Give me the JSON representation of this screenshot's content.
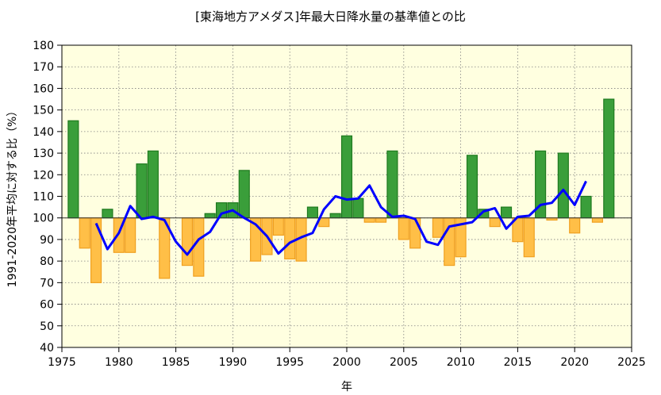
{
  "chart_data": {
    "type": "bar",
    "title": "[東海地方アメダス]年最大日降水量の基準値との比",
    "xlabel": "年",
    "ylabel": "1991-2020年平均に対する比（%）",
    "xlim": [
      1975,
      2025
    ],
    "ylim": [
      40,
      180
    ],
    "baseline": 100,
    "grid": true,
    "x_ticks": [
      1975,
      1980,
      1985,
      1990,
      1995,
      2000,
      2005,
      2010,
      2015,
      2020,
      2025
    ],
    "y_ticks": [
      40,
      50,
      60,
      70,
      80,
      90,
      100,
      110,
      120,
      130,
      140,
      150,
      160,
      170,
      180
    ],
    "colors": {
      "above": "#3a9e3a",
      "above_edge": "#1f7a1f",
      "below": "#ffbf47",
      "below_edge": "#f0a020",
      "line": "#0000ff",
      "plot_bg": "#ffffe0"
    },
    "bars": {
      "years": [
        1976,
        1977,
        1978,
        1979,
        1980,
        1981,
        1982,
        1983,
        1984,
        1985,
        1986,
        1987,
        1988,
        1989,
        1990,
        1991,
        1992,
        1993,
        1994,
        1995,
        1996,
        1997,
        1998,
        1999,
        2000,
        2001,
        2002,
        2003,
        2004,
        2005,
        2006,
        2007,
        2008,
        2009,
        2010,
        2011,
        2012,
        2013,
        2014,
        2015,
        2016,
        2017,
        2018,
        2019,
        2020,
        2021,
        2022,
        2023
      ],
      "values": [
        145,
        86,
        70,
        104,
        84,
        84,
        125,
        131,
        72,
        100,
        78,
        73,
        102,
        107,
        107,
        122,
        80,
        83,
        92,
        81,
        80,
        105,
        96,
        102,
        138,
        109,
        98,
        98,
        131,
        90,
        86,
        100,
        91,
        78,
        82,
        129,
        104,
        96,
        105,
        89,
        82,
        131,
        99,
        130,
        93,
        110,
        98,
        155
      ]
    },
    "series": [
      {
        "type": "line",
        "years": [
          1978,
          1979,
          1980,
          1981,
          1982,
          1983,
          1984,
          1985,
          1986,
          1987,
          1988,
          1989,
          1990,
          1991,
          1992,
          1993,
          1994,
          1995,
          1996,
          1997,
          1998,
          1999,
          2000,
          2001,
          2002,
          2003,
          2004,
          2005,
          2006,
          2007,
          2008,
          2009,
          2010,
          2011,
          2012,
          2013,
          2014,
          2015,
          2016,
          2017,
          2018,
          2019,
          2020,
          2021
        ],
        "values": [
          97.5,
          85.5,
          93,
          105.5,
          99.5,
          100.5,
          99,
          89,
          83,
          90,
          93.5,
          102,
          103.5,
          100,
          97,
          91.5,
          83.5,
          88.5,
          91,
          93,
          104,
          110,
          108.5,
          109,
          115,
          105,
          100.5,
          101,
          99.5,
          89,
          87.5,
          96,
          97,
          98,
          103,
          104.5,
          95,
          100.5,
          101,
          106,
          107,
          113,
          106,
          117
        ]
      }
    ]
  }
}
